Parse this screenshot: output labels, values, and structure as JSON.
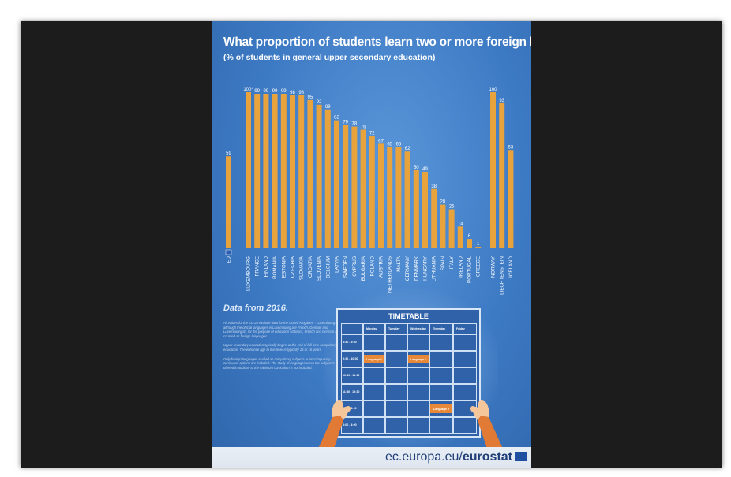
{
  "colors": {
    "background": "#ffffff",
    "viewer": "#1c1c1c",
    "poster": "#3d7ac4",
    "bar": "#e8a33d",
    "lang_cell": "#e8893a",
    "text": "#ffffff"
  },
  "title": "What proportion of students learn two or more foreign languages?",
  "subtitle": "(% of students in general upper secondary education)",
  "chart_data": {
    "type": "bar",
    "title": "What proportion of students learn two or more foreign languages?",
    "subtitle": "(% of students in general upper secondary education)",
    "ylim": [
      0,
      100
    ],
    "grid": false,
    "groups": [
      {
        "categories": [
          "EU"
        ],
        "values": [
          59
        ],
        "labels": [
          "59"
        ]
      },
      {
        "categories": [
          "LUXEMBOURG",
          "FRANCE",
          "FINLAND",
          "ROMANIA",
          "ESTONIA",
          "CZECHIA",
          "SLOVAKIA",
          "CROATIA",
          "SLOVENIA",
          "BELGIUM",
          "LATVIA",
          "SWEDEN",
          "CYPRUS",
          "BULGARIA",
          "POLAND",
          "AUSTRIA",
          "NETHERLANDS",
          "MALTA",
          "GERMANY",
          "DENMARK",
          "HUNGARY",
          "LITHUANIA",
          "SPAIN",
          "ITALY",
          "IRELAND",
          "PORTUGAL",
          "GREECE"
        ],
        "values": [
          100,
          99,
          99,
          99,
          99,
          98,
          98,
          95,
          92,
          89,
          82,
          79,
          78,
          76,
          72,
          67,
          65,
          65,
          62,
          50,
          49,
          38,
          28,
          25,
          14,
          6,
          1
        ],
        "labels": [
          "100*",
          "99",
          "99",
          "99",
          "99",
          "98",
          "98",
          "95",
          "92",
          "89",
          "82",
          "79",
          "78",
          "76",
          "72",
          "67",
          "65",
          "65",
          "62",
          "50",
          "49",
          "38",
          "28",
          "25",
          "14",
          "6",
          "1"
        ]
      },
      {
        "categories": [
          "NORWAY",
          "LIECHTENSTEIN",
          "ICELAND"
        ],
        "values": [
          100,
          93,
          63
        ],
        "labels": [
          "100",
          "93",
          "63"
        ]
      }
    ]
  },
  "notes": {
    "title": "Data from 2016.",
    "paragraphs": [
      "All values for the EU-28 exclude data for the United Kingdom. * Luxembourg: although the official languages in Luxembourg are French, German and Luxembourgish, for the purpose of education statistics, French and German are counted as foreign languages.",
      "Upper secondary education typically begins at the end of full-time compulsory education. The entrance age to this level is typically 15 or 16 years.",
      "Only foreign languages studied as compulsory subjects or as compulsory curriculum options are included. The study of languages when the subject is offered in addition to the minimum curriculum is not included."
    ]
  },
  "timetable": {
    "title": "TIMETABLE",
    "days": [
      "Monday",
      "Tuesday",
      "Wednesday",
      "Thursday",
      "Friday"
    ],
    "times": [
      "8:30 - 9:30",
      "9:30 - 10:30",
      "10:30 - 11:30",
      "11:30 - 12:30",
      "2:00 - 3:00",
      "3:00 - 4:00"
    ],
    "entries": [
      {
        "day": 0,
        "time": 1,
        "label": "Language 1"
      },
      {
        "day": 2,
        "time": 1,
        "label": "Language 1"
      },
      {
        "day": 3,
        "time": 4,
        "label": "Language 2"
      }
    ]
  },
  "footer": {
    "url_prefix": "ec.europa.eu/",
    "url_brand": "eurostat"
  }
}
